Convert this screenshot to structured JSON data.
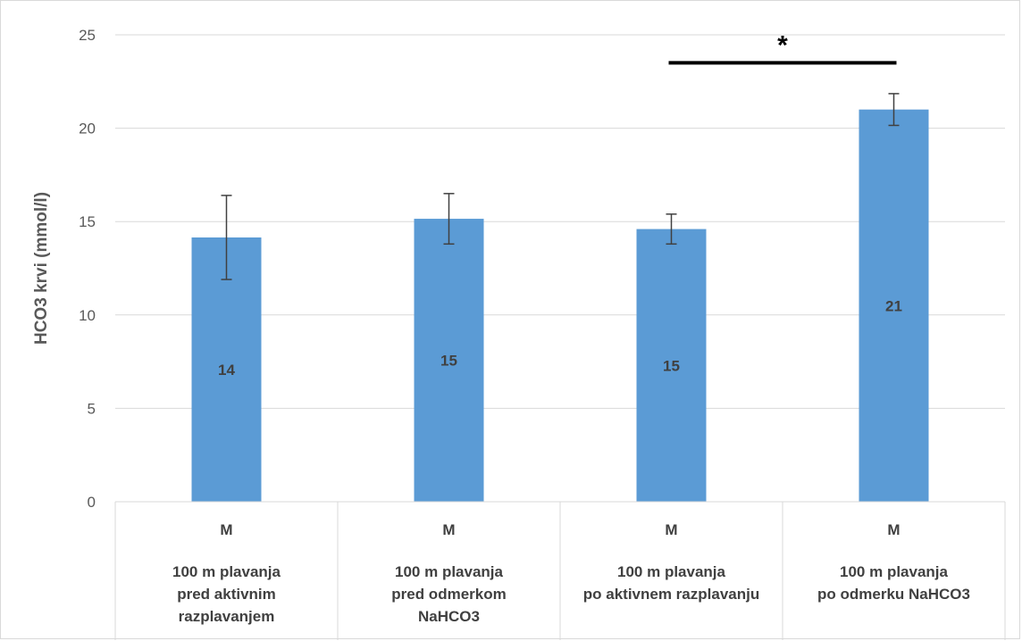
{
  "chart_data": {
    "type": "bar",
    "ylabel": "HCO3 krvi (mmol/l)",
    "ylim": [
      0,
      25
    ],
    "yticks": [
      0,
      5,
      10,
      15,
      20,
      25
    ],
    "grid": true,
    "bar_color": "#5b9bd5",
    "error_color": "#404040",
    "categories": [
      {
        "level1": "M",
        "level2": [
          "100 m plavanja",
          "pred aktivnim",
          "razplavanjem"
        ]
      },
      {
        "level1": "M",
        "level2": [
          "100 m plavanja",
          "pred odmerkom",
          "NaHCO3"
        ]
      },
      {
        "level1": "M",
        "level2": [
          "100 m plavanja",
          "po aktivnem razplavanju"
        ]
      },
      {
        "level1": "M",
        "level2": [
          "100 m plavanja",
          "po odmerku NaHCO3"
        ]
      }
    ],
    "values": [
      14.15,
      15.15,
      14.6,
      21.0
    ],
    "errors": [
      2.25,
      1.35,
      0.8,
      0.85
    ],
    "data_labels": [
      "14",
      "15",
      "15",
      "21"
    ],
    "annotation": {
      "text": "*",
      "from_category": 2,
      "to_category": 3,
      "y": 23.5
    }
  }
}
